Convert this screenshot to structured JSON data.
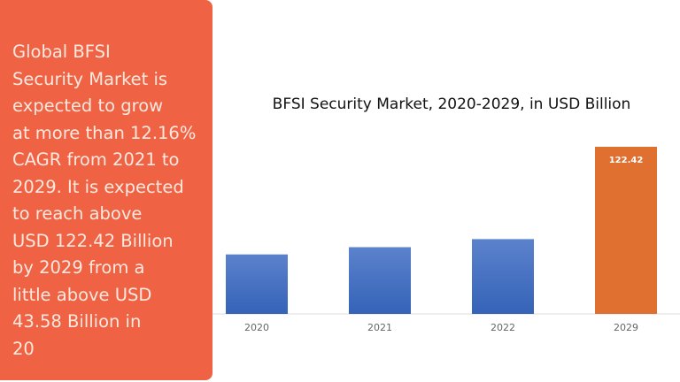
{
  "panel": {
    "text": "Global BFSI\nSecurity Market is\nexpected to grow\nat more than 12.16%\nCAGR from 2021 to\n2029. It is expected\nto reach above\nUSD 122.42 Billion\nby 2029 from a\nlittle above USD\n43.58 Billion in\n20",
    "color": "#ef6344"
  },
  "chart_data": {
    "type": "bar",
    "title": "BFSI Security Market, 2020-2029, in USD Billion",
    "categories": [
      "2020",
      "2021",
      "2022",
      "2029"
    ],
    "values": [
      43.58,
      48.9,
      54.8,
      122.42
    ],
    "data_labels": [
      "",
      "",
      "",
      "122.42"
    ],
    "colors": [
      "#4472c4",
      "#4472c4",
      "#4472c4",
      "#e07030"
    ],
    "ylim": [
      0,
      122.42
    ],
    "grid": false,
    "xlabel": "",
    "ylabel": ""
  }
}
